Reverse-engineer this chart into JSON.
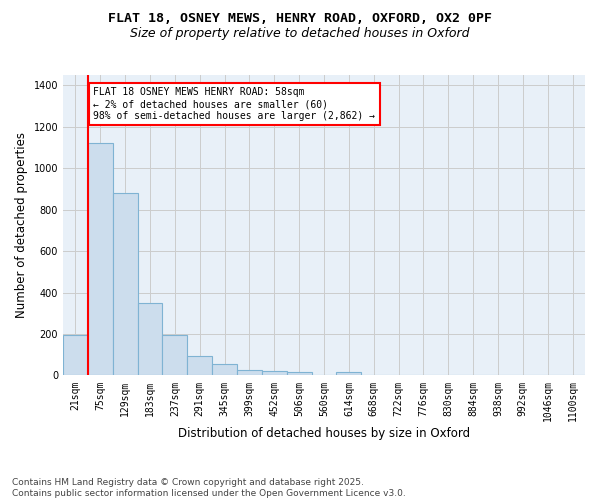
{
  "title_line1": "FLAT 18, OSNEY MEWS, HENRY ROAD, OXFORD, OX2 0PF",
  "title_line2": "Size of property relative to detached houses in Oxford",
  "xlabel": "Distribution of detached houses by size in Oxford",
  "ylabel": "Number of detached properties",
  "bar_color": "#ccdded",
  "bar_edge_color": "#7fb3d3",
  "bar_edge_width": 0.8,
  "grid_color": "#cccccc",
  "bg_color": "#e8f0f8",
  "annotation_text": "FLAT 18 OSNEY MEWS HENRY ROAD: 58sqm\n← 2% of detached houses are smaller (60)\n98% of semi-detached houses are larger (2,862) →",
  "annotation_box_color": "white",
  "annotation_box_edge": "red",
  "vline_color": "red",
  "categories": [
    "21sqm",
    "75sqm",
    "129sqm",
    "183sqm",
    "237sqm",
    "291sqm",
    "345sqm",
    "399sqm",
    "452sqm",
    "506sqm",
    "560sqm",
    "614sqm",
    "668sqm",
    "722sqm",
    "776sqm",
    "830sqm",
    "884sqm",
    "938sqm",
    "992sqm",
    "1046sqm",
    "1100sqm"
  ],
  "values": [
    195,
    1120,
    880,
    350,
    195,
    95,
    57,
    25,
    22,
    16,
    0,
    15,
    0,
    0,
    0,
    0,
    0,
    0,
    0,
    0,
    0
  ],
  "ylim": [
    0,
    1450
  ],
  "yticks": [
    0,
    200,
    400,
    600,
    800,
    1000,
    1200,
    1400
  ],
  "footnote": "Contains HM Land Registry data © Crown copyright and database right 2025.\nContains public sector information licensed under the Open Government Licence v3.0.",
  "title_fontsize": 9.5,
  "subtitle_fontsize": 9,
  "axis_label_fontsize": 8.5,
  "tick_fontsize": 7,
  "footnote_fontsize": 6.5,
  "annotation_fontsize": 7
}
